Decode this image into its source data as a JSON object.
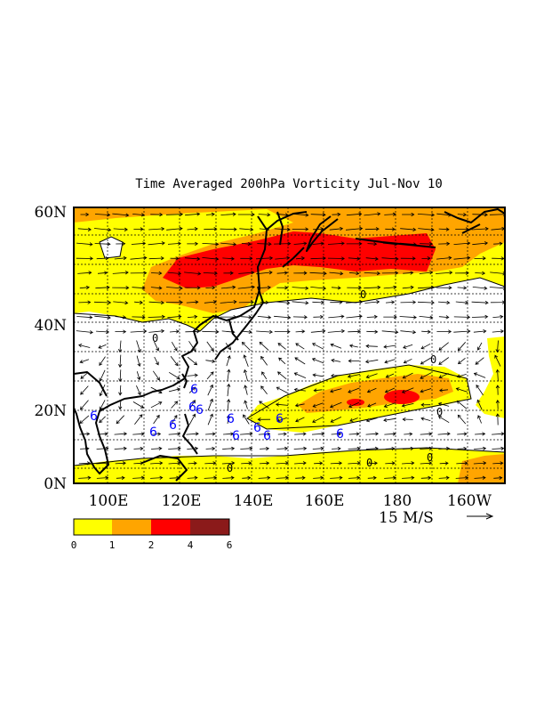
{
  "title": "Time Averaged 200hPa Vorticity Jul-Nov 10",
  "map": {
    "lat_range": [
      0,
      60
    ],
    "lon_range": [
      90,
      210
    ],
    "lat_ticks": [
      {
        "lat": 60,
        "label": "60N"
      },
      {
        "lat": 40,
        "label": "40N"
      },
      {
        "lat": 20,
        "label": "20N"
      },
      {
        "lat": 0,
        "label": "0N"
      }
    ],
    "lon_ticks": [
      {
        "lon": 100,
        "label": "100E"
      },
      {
        "lon": 120,
        "label": "120E"
      },
      {
        "lon": 140,
        "label": "140E"
      },
      {
        "lon": 160,
        "label": "160E"
      },
      {
        "lon": 180,
        "label": "180"
      },
      {
        "lon": 200,
        "label": "160W"
      }
    ],
    "grid": "dashed, every 10 degrees",
    "contour_labels": [
      "0",
      "0",
      "0",
      "0",
      "0",
      "0",
      "0"
    ],
    "vector_reference": {
      "label": "15 M/S",
      "arrow": "→"
    }
  },
  "colorbar": {
    "levels": [
      "0",
      "1",
      "2",
      "4",
      "6"
    ],
    "colors": [
      "#ffff00",
      "#ffa500",
      "#ff0000",
      "#8b1a1a"
    ]
  },
  "colors": {
    "level_0_1": "#ffff00",
    "level_1_2": "#ffa500",
    "level_2_4": "#ff0000",
    "level_4_6": "#8b1a1a",
    "storm_markers": "#0000ff",
    "coastline": "#000000"
  }
}
